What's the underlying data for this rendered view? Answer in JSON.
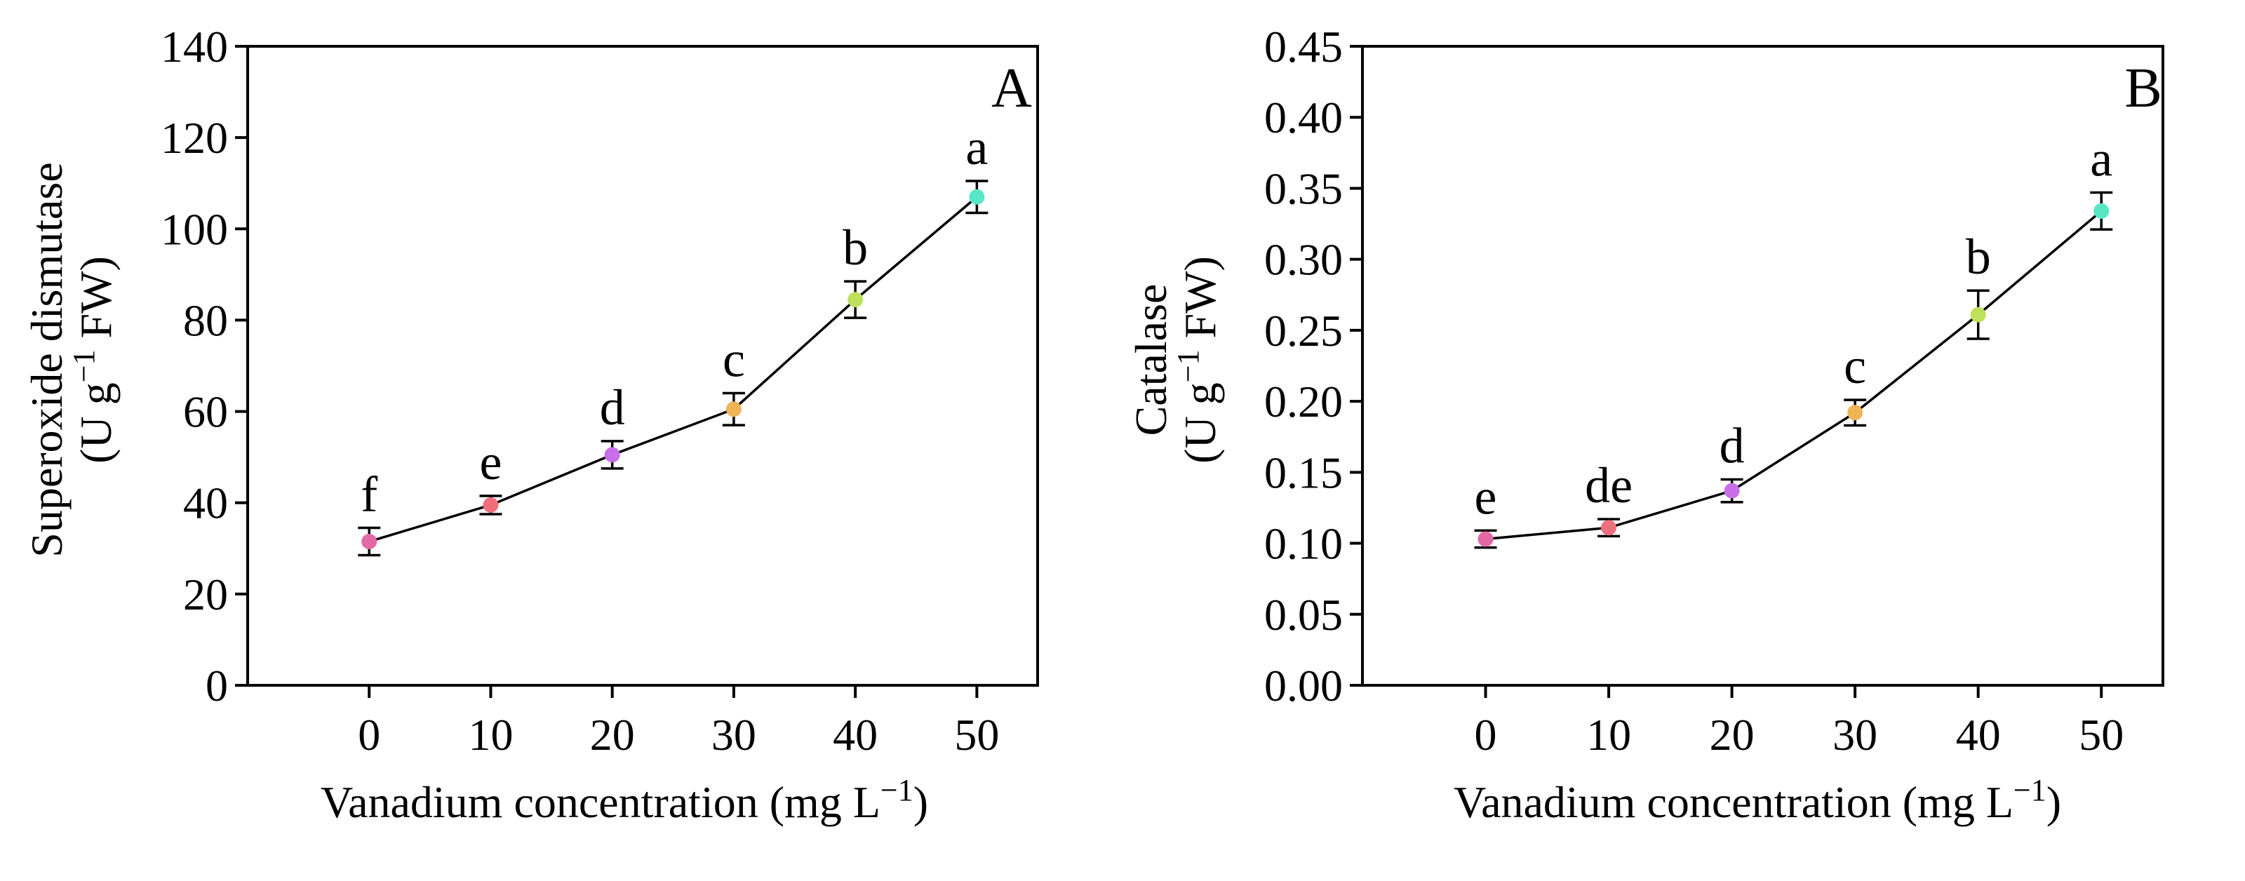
{
  "chart_data": [
    {
      "type": "line",
      "panel_label": "A",
      "x": [
        0,
        10,
        20,
        30,
        40,
        50
      ],
      "x_tick_labels": [
        "0",
        "10",
        "20",
        "30",
        "40",
        "50"
      ],
      "xlim": [
        -10,
        55
      ],
      "values": [
        31.5,
        39.5,
        50.5,
        60.5,
        84.5,
        107.0
      ],
      "errors": [
        3.0,
        2.0,
        3.0,
        3.5,
        4.0,
        3.5
      ],
      "significance": [
        "f",
        "e",
        "d",
        "c",
        "b",
        "a"
      ],
      "point_colors": [
        "#e468a6",
        "#ef6f7d",
        "#c86ee8",
        "#efb456",
        "#bfe05b",
        "#57e6c6"
      ],
      "yticks": [
        0,
        20,
        40,
        60,
        80,
        100,
        120,
        140
      ],
      "y_tick_labels": [
        "0",
        "20",
        "40",
        "60",
        "80",
        "100",
        "120",
        "140"
      ],
      "ylim": [
        0,
        140
      ],
      "ylabel_line1": "Superoxide dismutase",
      "ylabel_unit_prefix": "(U g",
      "ylabel_unit_exp": "−1",
      "ylabel_unit_suffix": " FW)",
      "xlabel_prefix": "Vanadium concentration (mg L",
      "xlabel_exp": "−1",
      "xlabel_suffix": ")"
    },
    {
      "type": "line",
      "panel_label": "B",
      "x": [
        0,
        10,
        20,
        30,
        40,
        50
      ],
      "x_tick_labels": [
        "0",
        "10",
        "20",
        "30",
        "40",
        "50"
      ],
      "xlim": [
        -10,
        55
      ],
      "values": [
        0.103,
        0.111,
        0.137,
        0.192,
        0.261,
        0.334
      ],
      "errors": [
        0.006,
        0.006,
        0.008,
        0.009,
        0.017,
        0.013
      ],
      "significance": [
        "e",
        "de",
        "d",
        "c",
        "b",
        "a"
      ],
      "point_colors": [
        "#e468a6",
        "#ef6f7d",
        "#c86ee8",
        "#efb456",
        "#bfe05b",
        "#57e6c6"
      ],
      "yticks": [
        0,
        0.05,
        0.1,
        0.15,
        0.2,
        0.25,
        0.3,
        0.35,
        0.4,
        0.45
      ],
      "y_tick_labels": [
        "0.00",
        "0.05",
        "0.10",
        "0.15",
        "0.20",
        "0.25",
        "0.30",
        "0.35",
        "0.40",
        "0.45"
      ],
      "ylim": [
        0,
        0.45
      ],
      "ylabel_line1": "Catalase",
      "ylabel_unit_prefix": "(U g",
      "ylabel_unit_exp": "−1",
      "ylabel_unit_suffix": " FW)",
      "xlabel_prefix": "Vanadium concentration (mg L",
      "xlabel_exp": "−1",
      "xlabel_suffix": ")"
    }
  ]
}
